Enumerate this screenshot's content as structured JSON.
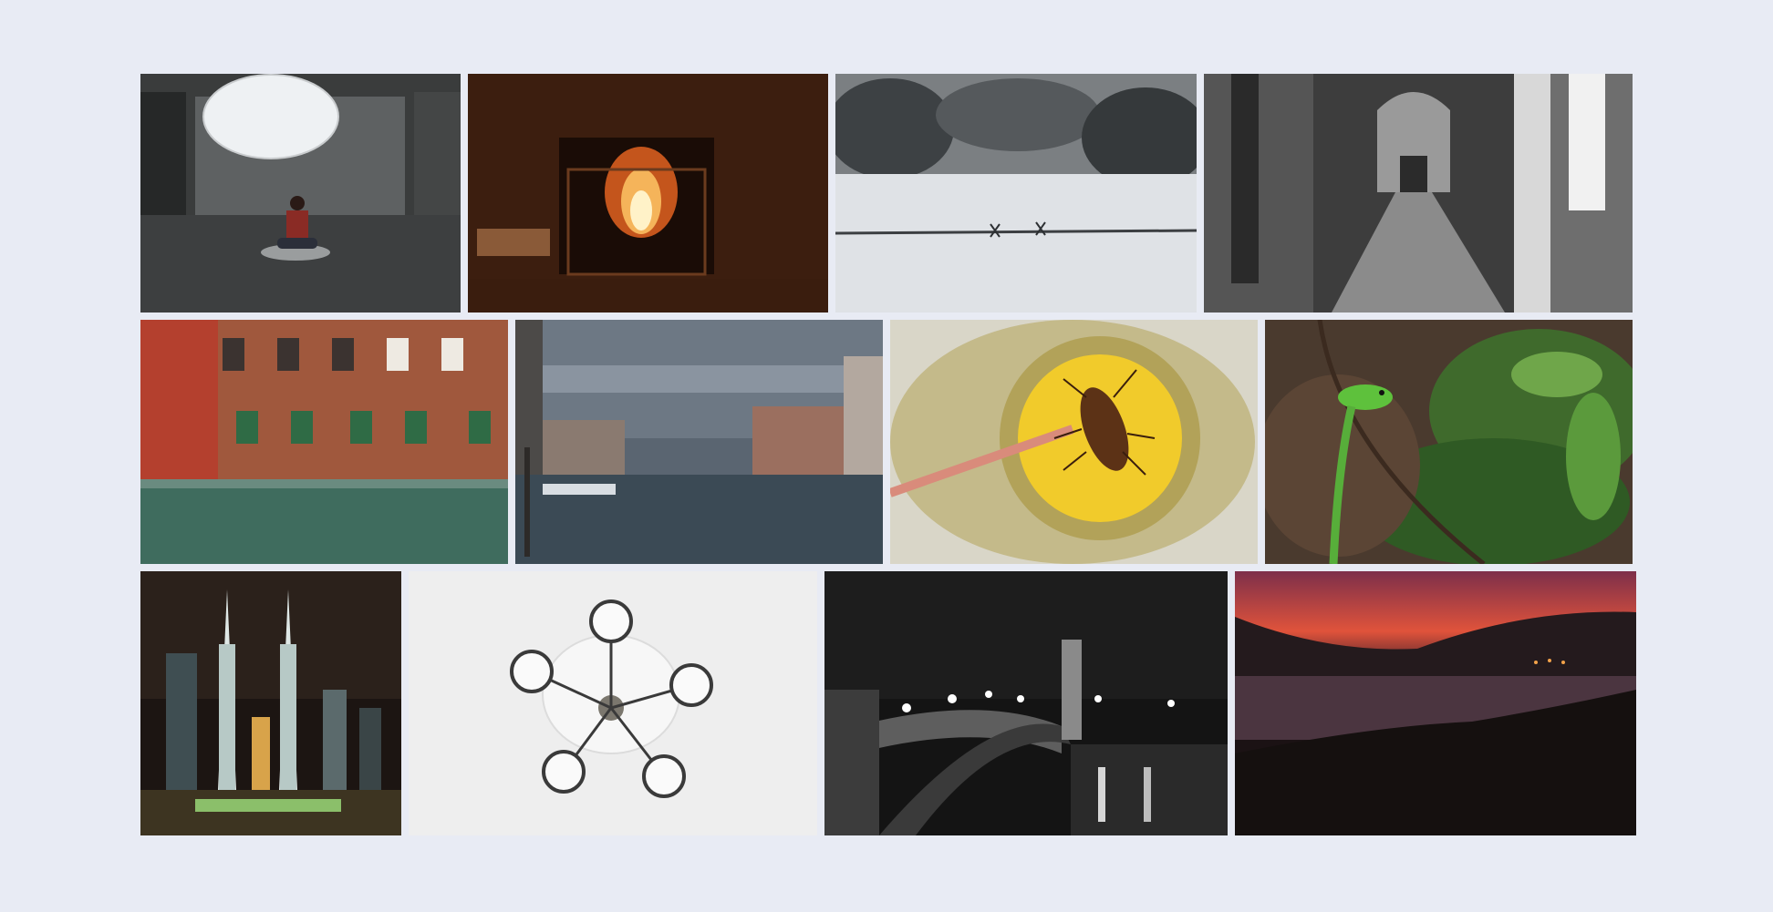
{
  "gallery": {
    "rows": [
      [
        {
          "id": "lantern-meditation"
        },
        {
          "id": "fireplace"
        },
        {
          "id": "barbed-wire-snow"
        },
        {
          "id": "arched-corridor"
        }
      ],
      [
        {
          "id": "venice-brick-facade"
        },
        {
          "id": "venice-grand-canal"
        },
        {
          "id": "cockroach-on-sponge"
        },
        {
          "id": "green-lizard"
        }
      ],
      [
        {
          "id": "petronas-towers-night"
        },
        {
          "id": "ceiling-chandelier"
        },
        {
          "id": "night-bridge-lamps"
        },
        {
          "id": "sunset-bay"
        }
      ]
    ]
  },
  "colors": {
    "background": "#e8ebf4"
  }
}
